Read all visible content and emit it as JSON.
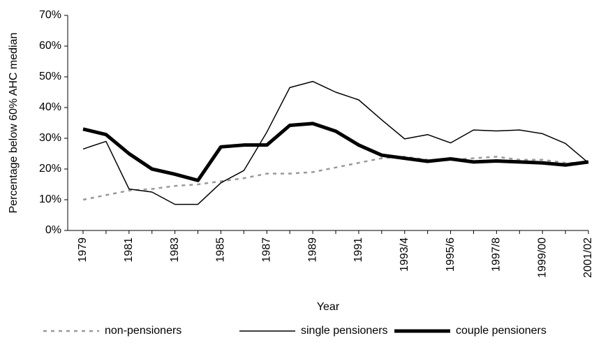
{
  "chart_data": {
    "type": "line",
    "y_label": "Percentage below 60% AHC median",
    "x_label": "Year",
    "categories": [
      "1979",
      null,
      "1981",
      null,
      "1983",
      null,
      "1985",
      null,
      "1987",
      null,
      "1989",
      null,
      "1991",
      null,
      "1993/4",
      null,
      "1995/6",
      null,
      "1997/8",
      null,
      "1999/00",
      null,
      "2001/02"
    ],
    "series": [
      {
        "name": "non-pensioners",
        "color": "#999999",
        "dashed": true,
        "width": 2.5,
        "values": [
          10,
          11.5,
          13,
          13.5,
          14.5,
          15,
          16,
          17,
          18.5,
          18.5,
          19,
          20.5,
          22,
          23.5,
          24,
          23,
          23,
          23.5,
          24,
          23,
          23,
          22,
          22
        ]
      },
      {
        "name": "single pensioners",
        "color": "#000000",
        "dashed": false,
        "width": 1.5,
        "values": [
          26.5,
          29,
          13.5,
          12.5,
          8.5,
          8.5,
          15.5,
          19.5,
          32,
          46.5,
          48.5,
          45,
          42.5,
          36,
          29.8,
          31.2,
          28.5,
          32.7,
          32.4,
          32.7,
          31.5,
          28.3,
          22
        ]
      },
      {
        "name": "couple pensioners",
        "color": "#000000",
        "dashed": false,
        "width": 5,
        "values": [
          33,
          31.2,
          25,
          20,
          18.3,
          16.3,
          27.2,
          27.8,
          27.8,
          34.2,
          34.8,
          32.3,
          27.8,
          24.5,
          23.5,
          22.5,
          23.3,
          22.3,
          22.6,
          22.3,
          22,
          21.3,
          22.3
        ]
      }
    ],
    "ylim": [
      0,
      70
    ],
    "yticks": [
      {
        "value": 0,
        "label": "0%"
      },
      {
        "value": 10,
        "label": "10%"
      },
      {
        "value": 20,
        "label": "20%"
      },
      {
        "value": 30,
        "label": "30%"
      },
      {
        "value": 40,
        "label": "40%"
      },
      {
        "value": 50,
        "label": "50%"
      },
      {
        "value": 60,
        "label": "60%"
      },
      {
        "value": 70,
        "label": "70%"
      }
    ],
    "grid": false,
    "legend": "bottom"
  }
}
